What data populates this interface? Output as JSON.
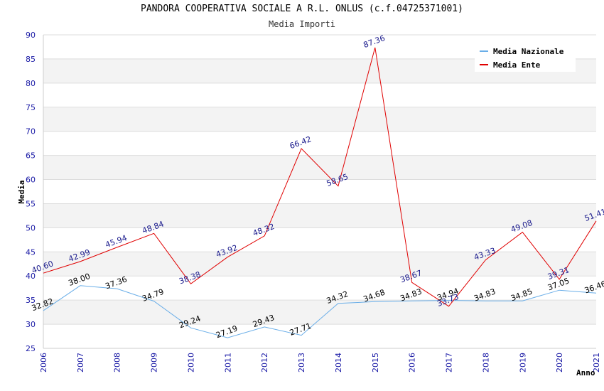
{
  "title": "PANDORA COOPERATIVA SOCIALE A R.L. ONLUS (c.f.04725371001)",
  "subtitle": "Media Importi",
  "chart_data": {
    "type": "line",
    "xlabel": "Anno",
    "ylabel": "Media",
    "ylim": [
      25,
      90
    ],
    "ystep": 5,
    "grid": true,
    "legend_position": "top-right",
    "x": [
      "2006",
      "2007",
      "2008",
      "2009",
      "2010",
      "2011",
      "2012",
      "2013",
      "2014",
      "2015",
      "2016",
      "2017",
      "2018",
      "2019",
      "2020",
      "2021"
    ],
    "series": [
      {
        "name": "Media Nazionale",
        "color": "#6aaee8",
        "label_color": "#000000",
        "values": [
          32.82,
          38.0,
          37.36,
          34.79,
          29.24,
          27.19,
          29.43,
          27.71,
          34.32,
          34.68,
          34.83,
          34.94,
          34.83,
          34.85,
          37.05,
          36.46
        ],
        "labels": [
          "32.82",
          "38.00",
          "37.36",
          "34.79",
          "29.24",
          "27.19",
          "29.43",
          "27.71",
          "34.32",
          "34.68",
          "34.83",
          "34.94",
          "34.83",
          "34.85",
          "37.05",
          "36.46"
        ]
      },
      {
        "name": "Media Ente",
        "color": "#e00000",
        "label_color": "#1a1a8c",
        "values": [
          40.6,
          42.99,
          45.94,
          48.84,
          38.38,
          43.92,
          48.32,
          66.42,
          58.65,
          87.36,
          38.67,
          33.73,
          43.33,
          49.08,
          39.31,
          51.41
        ],
        "labels": [
          "40.60",
          "42.99",
          "45.94",
          "48.84",
          "38.38",
          "43.92",
          "48.32",
          "66.42",
          "58.65",
          "87.36",
          "38.67",
          "33.73",
          "43.33",
          "49.08",
          "39.31",
          "51.41"
        ]
      }
    ]
  }
}
